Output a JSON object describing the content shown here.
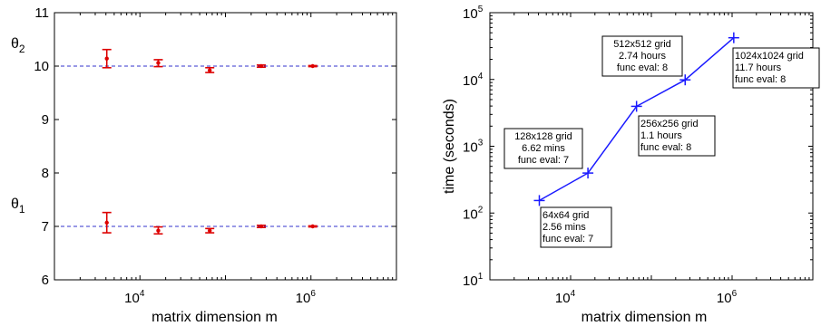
{
  "chart_data": [
    {
      "type": "scatter",
      "subtype": "error-bar",
      "x_scale": "log",
      "xlim": [
        1000,
        10000000
      ],
      "ylim": [
        6,
        11
      ],
      "x_ticks": [
        {
          "value": 10000,
          "base": "10",
          "exp": "4"
        },
        {
          "value": 1000000,
          "base": "10",
          "exp": "6"
        }
      ],
      "y_ticks": [
        "6",
        "7",
        "8",
        "9",
        "10",
        "11"
      ],
      "xlabel": "matrix dimension m",
      "ylabel": "",
      "grid": false,
      "reference_lines": [
        {
          "y": 10,
          "color": "#3333cc",
          "style": "dashed"
        },
        {
          "y": 7,
          "color": "#3333cc",
          "style": "dashed"
        }
      ],
      "side_labels": [
        {
          "base": "θ",
          "sub": "2",
          "y": 10
        },
        {
          "base": "θ",
          "sub": "1",
          "y": 7
        }
      ],
      "marker_color": "#dd0000",
      "series": [
        {
          "points": [
            {
              "x": 4096,
              "y": 10.14,
              "lo": 9.97,
              "hi": 10.31
            },
            {
              "x": 16384,
              "y": 10.06,
              "lo": 9.99,
              "hi": 10.12
            },
            {
              "x": 65536,
              "y": 9.92,
              "lo": 9.88,
              "hi": 9.97
            },
            {
              "x": 262144,
              "y": 10.0,
              "lo": 9.98,
              "hi": 10.02
            },
            {
              "x": 1048576,
              "y": 10.0,
              "lo": 9.99,
              "hi": 10.01
            }
          ]
        },
        {
          "points": [
            {
              "x": 4096,
              "y": 7.07,
              "lo": 6.88,
              "hi": 7.26
            },
            {
              "x": 16384,
              "y": 6.92,
              "lo": 6.86,
              "hi": 6.99
            },
            {
              "x": 65536,
              "y": 6.92,
              "lo": 6.88,
              "hi": 6.96
            },
            {
              "x": 262144,
              "y": 7.0,
              "lo": 6.98,
              "hi": 7.02
            },
            {
              "x": 1048576,
              "y": 7.0,
              "lo": 6.99,
              "hi": 7.01
            }
          ]
        }
      ]
    },
    {
      "type": "line",
      "x_scale": "log",
      "y_scale": "log",
      "xlim": [
        1000,
        10000000
      ],
      "ylim": [
        10,
        100000
      ],
      "x_ticks": [
        {
          "value": 10000,
          "base": "10",
          "exp": "4"
        },
        {
          "value": 1000000,
          "base": "10",
          "exp": "6"
        }
      ],
      "y_ticks": [
        {
          "value": 10,
          "base": "10",
          "exp": "1"
        },
        {
          "value": 100,
          "base": "10",
          "exp": "2"
        },
        {
          "value": 1000,
          "base": "10",
          "exp": "3"
        },
        {
          "value": 10000,
          "base": "10",
          "exp": "4"
        },
        {
          "value": 100000,
          "base": "10",
          "exp": "5"
        }
      ],
      "xlabel": "matrix dimension m",
      "ylabel": "time (seconds)",
      "grid": false,
      "line_color": "#1a1aff",
      "series": [
        {
          "x": [
            4096,
            16384,
            65536,
            262144,
            1048576
          ],
          "y": [
            154,
            397,
            3960,
            9864,
            42120
          ]
        }
      ],
      "annotations": [
        {
          "lines": [
            "64x64 grid",
            "2.56 mins",
            "func eval: 7"
          ]
        },
        {
          "lines": [
            "128x128 grid",
            "6.62 mins",
            "func eval: 7"
          ]
        },
        {
          "lines": [
            "256x256 grid",
            "1.1 hours",
            "func eval: 8"
          ]
        },
        {
          "lines": [
            "512x512 grid",
            "2.74 hours",
            "func eval: 8"
          ]
        },
        {
          "lines": [
            "1024x1024 grid",
            "11.7 hours",
            "func eval: 8"
          ]
        }
      ]
    }
  ]
}
